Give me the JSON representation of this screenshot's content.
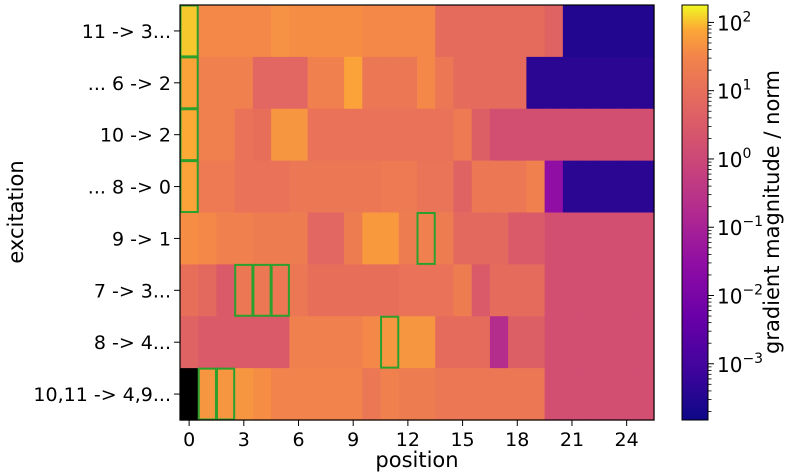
{
  "chart_data": {
    "type": "heatmap",
    "xlabel": "position",
    "ylabel": "excitation",
    "colorbar_label": "gradient magnitude / norm",
    "colormap": "plasma",
    "color_scale": "log",
    "x_ticks": [
      0,
      3,
      6,
      9,
      12,
      15,
      18,
      21,
      24
    ],
    "x_range": [
      0,
      25
    ],
    "rows": [
      "11 -> 3...",
      "... 6 -> 2",
      "10 -> 2",
      "... 8 -> 0",
      "9 -> 1",
      "7 -> 3...",
      "8 -> 4...",
      "10,11 -> 4,9..."
    ],
    "colorbar_ticks": [
      {
        "value": 100,
        "base": "10",
        "exp": "2"
      },
      {
        "value": 10,
        "base": "10",
        "exp": "1"
      },
      {
        "value": 1,
        "base": "10",
        "exp": "0"
      },
      {
        "value": 0.1,
        "base": "10",
        "exp": "−1"
      },
      {
        "value": 0.01,
        "base": "10",
        "exp": "−2"
      },
      {
        "value": 0.001,
        "base": "10",
        "exp": "−3"
      }
    ],
    "colorbar_range": [
      0.00015,
      180
    ],
    "cell_values": [
      [
        110,
        35,
        35,
        35,
        35,
        45,
        40,
        40,
        40,
        40,
        35,
        35,
        35,
        35,
        8,
        8,
        8,
        8,
        8,
        8,
        5,
        0.0003,
        0.0003,
        0.0003,
        0.0003,
        0.0003
      ],
      [
        70,
        25,
        25,
        25,
        6,
        6,
        6,
        25,
        25,
        70,
        15,
        15,
        15,
        35,
        15,
        8,
        8,
        8,
        8,
        0.0004,
        0.0004,
        0.0004,
        0.0004,
        0.0004,
        0.0004,
        0.0004
      ],
      [
        80,
        25,
        25,
        12,
        10,
        50,
        50,
        12,
        12,
        12,
        12,
        12,
        12,
        12,
        12,
        18,
        4,
        1.5,
        1.5,
        1.5,
        1.5,
        1.5,
        1.5,
        1.5,
        1.5,
        1.5
      ],
      [
        70,
        18,
        18,
        12,
        12,
        12,
        15,
        15,
        15,
        15,
        15,
        18,
        18,
        13,
        13,
        5,
        15,
        15,
        15,
        25,
        0.03,
        0.0004,
        0.0004,
        0.0004,
        0.0004,
        0.0004
      ],
      [
        40,
        35,
        25,
        25,
        20,
        20,
        20,
        6,
        6,
        20,
        55,
        55,
        20,
        25,
        20,
        7,
        7,
        7,
        3,
        3,
        1.5,
        1.5,
        1.5,
        1.5,
        1.5,
        1.5
      ],
      [
        10,
        7,
        3,
        15,
        15,
        15,
        15,
        10,
        10,
        10,
        10,
        10,
        12,
        12,
        12,
        20,
        3,
        8,
        8,
        8,
        1.5,
        1.5,
        1.5,
        1.5,
        1.5,
        1.5
      ],
      [
        5,
        3,
        3,
        3,
        3,
        3,
        25,
        25,
        25,
        25,
        35,
        50,
        50,
        50,
        8,
        8,
        8,
        0.2,
        4,
        4,
        1.5,
        1.5,
        1.5,
        1.5,
        1.5,
        1.5
      ],
      [
        null,
        50,
        50,
        50,
        40,
        30,
        30,
        30,
        30,
        30,
        15,
        25,
        20,
        20,
        15,
        15,
        15,
        15,
        15,
        15,
        1.5,
        1.5,
        1.5,
        1.5,
        1.5,
        1.5
      ]
    ],
    "highlights": [
      {
        "row": 0,
        "col": 0
      },
      {
        "row": 1,
        "col": 0
      },
      {
        "row": 2,
        "col": 0
      },
      {
        "row": 3,
        "col": 0
      },
      {
        "row": 4,
        "col": 13
      },
      {
        "row": 5,
        "col": 3
      },
      {
        "row": 5,
        "col": 4
      },
      {
        "row": 5,
        "col": 5
      },
      {
        "row": 6,
        "col": 11
      },
      {
        "row": 7,
        "col": 1
      },
      {
        "row": 7,
        "col": 2
      }
    ],
    "highlight_color": "#2ca02c",
    "missing_color": "#000000"
  }
}
